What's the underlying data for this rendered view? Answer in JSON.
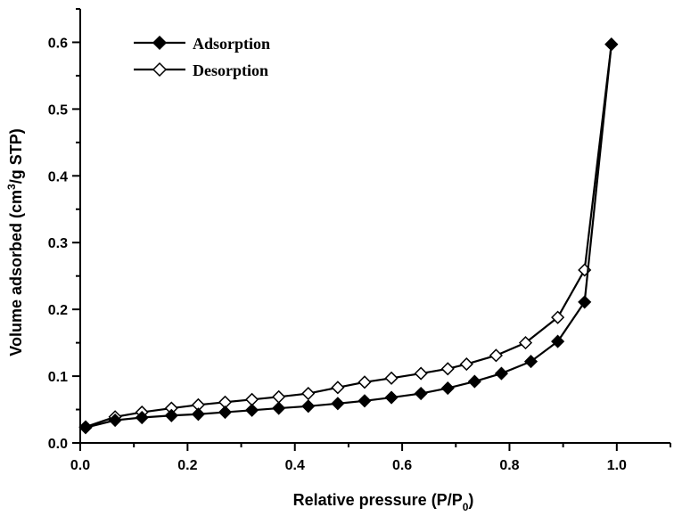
{
  "chart_data": {
    "type": "line",
    "xlabel": "Relative pressure (P/P",
    "xlabel_sub": "0",
    "xlabel_end": ")",
    "ylabel": "Volume adsorbed (cm",
    "ylabel_sup": "3",
    "ylabel_end": "/g STP)",
    "xlim": [
      0.0,
      1.1
    ],
    "ylim": [
      0.0,
      0.65
    ],
    "xticks": [
      "0.0",
      "0.2",
      "0.4",
      "0.6",
      "0.8",
      "1.0"
    ],
    "yticks": [
      "0.0",
      "0.1",
      "0.2",
      "0.3",
      "0.4",
      "0.5",
      "0.6"
    ],
    "legend_position": "top-left",
    "grid": false,
    "series": [
      {
        "name": "Adsorption",
        "marker": "filled-diamond",
        "color": "#000000",
        "points": [
          [
            0.01,
            0.023
          ],
          [
            0.065,
            0.034
          ],
          [
            0.115,
            0.038
          ],
          [
            0.17,
            0.041
          ],
          [
            0.22,
            0.043
          ],
          [
            0.27,
            0.046
          ],
          [
            0.32,
            0.049
          ],
          [
            0.37,
            0.052
          ],
          [
            0.425,
            0.055
          ],
          [
            0.48,
            0.059
          ],
          [
            0.53,
            0.063
          ],
          [
            0.58,
            0.068
          ],
          [
            0.635,
            0.074
          ],
          [
            0.685,
            0.082
          ],
          [
            0.735,
            0.092
          ],
          [
            0.785,
            0.104
          ],
          [
            0.84,
            0.122
          ],
          [
            0.89,
            0.152
          ],
          [
            0.94,
            0.211
          ],
          [
            0.99,
            0.597
          ]
        ]
      },
      {
        "name": "Desorption",
        "marker": "open-diamond",
        "color": "#000000",
        "points": [
          [
            0.01,
            0.024
          ],
          [
            0.065,
            0.039
          ],
          [
            0.115,
            0.046
          ],
          [
            0.17,
            0.052
          ],
          [
            0.22,
            0.057
          ],
          [
            0.27,
            0.061
          ],
          [
            0.32,
            0.065
          ],
          [
            0.37,
            0.069
          ],
          [
            0.425,
            0.074
          ],
          [
            0.48,
            0.083
          ],
          [
            0.53,
            0.091
          ],
          [
            0.58,
            0.097
          ],
          [
            0.635,
            0.104
          ],
          [
            0.685,
            0.111
          ],
          [
            0.72,
            0.118
          ],
          [
            0.775,
            0.131
          ],
          [
            0.83,
            0.15
          ],
          [
            0.89,
            0.188
          ],
          [
            0.94,
            0.259
          ],
          [
            0.99,
            0.597
          ]
        ]
      }
    ]
  }
}
